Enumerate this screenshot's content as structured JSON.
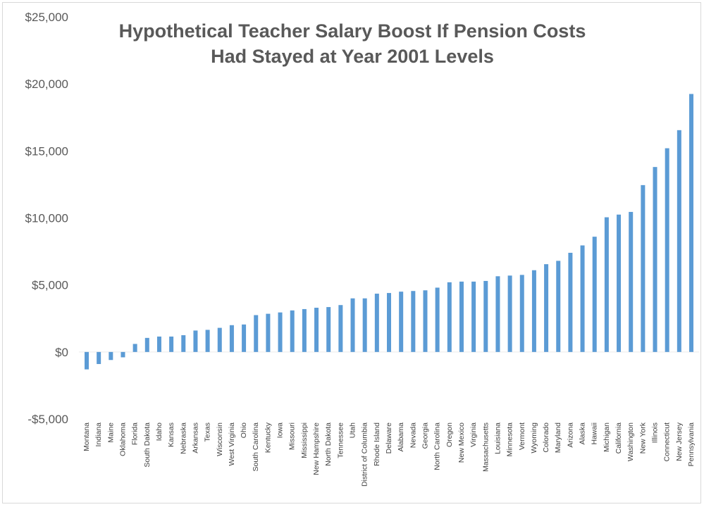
{
  "chart_data": {
    "type": "bar",
    "title": [
      "Hypothetical Teacher Salary Boost If Pension Costs",
      "Had Stayed at Year 2001 Levels"
    ],
    "xlabel": "",
    "ylabel": "",
    "ylim": [
      -5000,
      25000
    ],
    "yticks": [
      -5000,
      0,
      5000,
      10000,
      15000,
      20000,
      25000
    ],
    "ytick_labels": [
      "-$5,000",
      "$0",
      "$5,000",
      "$10,000",
      "$15,000",
      "$20,000",
      "$25,000"
    ],
    "grid": false,
    "bar_color": "#5b9bd5",
    "categories": [
      "Montana",
      "Indiana",
      "Maine",
      "Oklahoma",
      "Florida",
      "South Dakota",
      "Idaho",
      "Kansas",
      "Nebraska",
      "Arkansas",
      "Texas",
      "Wisconsin",
      "West Virginia",
      "Ohio",
      "South Carolina",
      "Kentucky",
      "Iowa",
      "Missouri",
      "Mississippi",
      "New Hampshire",
      "North Dakota",
      "Tennessee",
      "Utah",
      "District of Columbia",
      "Rhode Island",
      "Delaware",
      "Alabama",
      "Nevada",
      "Georgia",
      "North Carolina",
      "Oregon",
      "New Mexico",
      "Virginia",
      "Massachusetts",
      "Louisiana",
      "Minnesota",
      "Vermont",
      "Wyoming",
      "Colorado",
      "Maryland",
      "Arizona",
      "Alaska",
      "Hawaii",
      "Michigan",
      "California",
      "Washington",
      "New York",
      "Illinois",
      "Connecticut",
      "New Jersey",
      "Pennsylvania"
    ],
    "values": [
      -1300,
      -900,
      -600,
      -400,
      600,
      1050,
      1150,
      1150,
      1250,
      1600,
      1650,
      1800,
      2000,
      2050,
      2750,
      2850,
      2950,
      3100,
      3200,
      3300,
      3350,
      3500,
      4000,
      4000,
      4350,
      4400,
      4500,
      4550,
      4600,
      4800,
      5200,
      5250,
      5250,
      5300,
      5650,
      5700,
      5750,
      6100,
      6550,
      6800,
      7400,
      7950,
      8600,
      10050,
      10250,
      10450,
      12450,
      13800,
      15200,
      16550,
      19250
    ]
  }
}
